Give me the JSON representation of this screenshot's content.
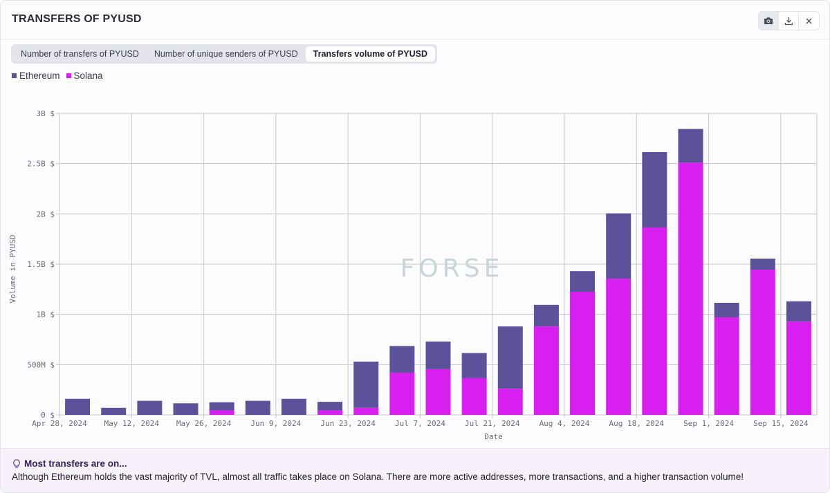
{
  "header": {
    "title": "TRANSFERS OF PYUSD"
  },
  "toolbar": {
    "icons": [
      "camera-icon",
      "download-icon",
      "close-icon"
    ]
  },
  "tabs": [
    {
      "label": "Number of transfers of PYUSD",
      "active": false
    },
    {
      "label": "Number of unique senders of PYUSD",
      "active": false
    },
    {
      "label": "Transfers volume of PYUSD",
      "active": true
    }
  ],
  "colors": {
    "ethereum": "#5b5299",
    "solana": "#d81ff0",
    "grid": "#c8c8cc",
    "watermark": "#c9d6d6"
  },
  "watermark": "FORSE",
  "chart_data": {
    "type": "bar",
    "stacked": true,
    "title": "",
    "xlabel": "Date",
    "ylabel": "Volume in PYUSD",
    "ylim": [
      0,
      3000000000
    ],
    "yticks": [
      {
        "value": 0,
        "label": "0 $"
      },
      {
        "value": 500000000,
        "label": "500M $"
      },
      {
        "value": 1000000000,
        "label": "1B $"
      },
      {
        "value": 1500000000,
        "label": "1.5B $"
      },
      {
        "value": 2000000000,
        "label": "2B $"
      },
      {
        "value": 2500000000,
        "label": "2.5B $"
      },
      {
        "value": 3000000000,
        "label": "3B $"
      }
    ],
    "xticks": [
      {
        "index": 0,
        "label": "Apr 28, 2024"
      },
      {
        "index": 2,
        "label": "May 12, 2024"
      },
      {
        "index": 4,
        "label": "May 26, 2024"
      },
      {
        "index": 6,
        "label": "Jun 9, 2024"
      },
      {
        "index": 8,
        "label": "Jun 23, 2024"
      },
      {
        "index": 10,
        "label": "Jul 7, 2024"
      },
      {
        "index": 12,
        "label": "Jul 21, 2024"
      },
      {
        "index": 14,
        "label": "Aug 4, 2024"
      },
      {
        "index": 16,
        "label": "Aug 18, 2024"
      },
      {
        "index": 18,
        "label": "Sep 1, 2024"
      },
      {
        "index": 20,
        "label": "Sep 15, 2024"
      }
    ],
    "categories": [
      "Apr 28, 2024",
      "May 5, 2024",
      "May 12, 2024",
      "May 19, 2024",
      "May 26, 2024",
      "Jun 2, 2024",
      "Jun 9, 2024",
      "Jun 16, 2024",
      "Jun 23, 2024",
      "Jun 30, 2024",
      "Jul 7, 2024",
      "Jul 14, 2024",
      "Jul 21, 2024",
      "Jul 28, 2024",
      "Aug 4, 2024",
      "Aug 11, 2024",
      "Aug 18, 2024",
      "Aug 25, 2024",
      "Sep 1, 2024",
      "Sep 8, 2024",
      "Sep 15, 2024"
    ],
    "series": [
      {
        "name": "Solana",
        "values": [
          0,
          0,
          0,
          0,
          45000000,
          0,
          0,
          45000000,
          70000000,
          420000000,
          455000000,
          365000000,
          260000000,
          880000000,
          1225000000,
          1355000000,
          1865000000,
          2510000000,
          970000000,
          1445000000,
          930000000
        ]
      },
      {
        "name": "Ethereum",
        "values": [
          160000000,
          70000000,
          140000000,
          115000000,
          80000000,
          140000000,
          160000000,
          85000000,
          460000000,
          265000000,
          275000000,
          250000000,
          620000000,
          215000000,
          205000000,
          650000000,
          750000000,
          335000000,
          145000000,
          110000000,
          200000000
        ]
      }
    ],
    "legend": [
      {
        "name": "Ethereum"
      },
      {
        "name": "Solana"
      }
    ]
  },
  "footer": {
    "title": "Most transfers are on...",
    "text": "Although Ethereum holds the vast majority of TVL, almost all traffic takes place on Solana. There are more active addresses, more transactions, and a higher transaction volume!"
  }
}
